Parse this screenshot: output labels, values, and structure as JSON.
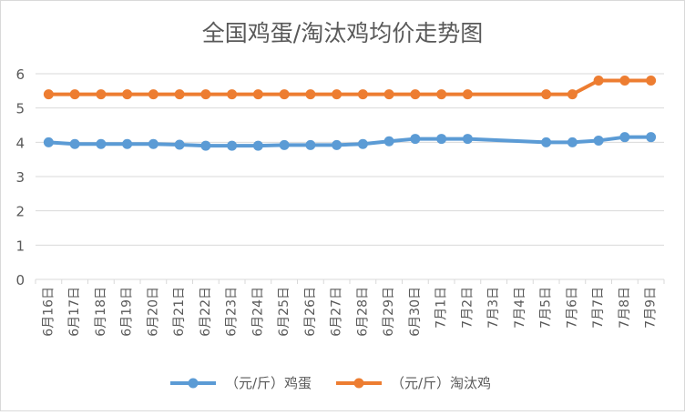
{
  "chart_data": {
    "type": "line",
    "title": "全国鸡蛋/淘汰鸡均价走势图",
    "ylim": [
      0,
      6
    ],
    "yticks": [
      0,
      1,
      2,
      3,
      4,
      5,
      6
    ],
    "grid": true,
    "legend_position": "bottom",
    "categories": [
      "6月16日",
      "6月17日",
      "6月18日",
      "6月19日",
      "6月20日",
      "6月21日",
      "6月22日",
      "6月23日",
      "6月24日",
      "6月25日",
      "6月26日",
      "6月27日",
      "6月28日",
      "6月29日",
      "6月30日",
      "7月1日",
      "7月2日",
      "7月3日",
      "7月4日",
      "7月5日",
      "7月6日",
      "7月7日",
      "7月8日",
      "7月9日"
    ],
    "series": [
      {
        "name": "（元/斤）鸡蛋",
        "color": "#5b9bd5",
        "values": [
          4.0,
          3.95,
          3.95,
          3.95,
          3.95,
          3.93,
          3.9,
          3.9,
          3.9,
          3.92,
          3.92,
          3.92,
          3.95,
          4.03,
          4.1,
          4.1,
          4.1,
          null,
          null,
          4.0,
          4.0,
          4.05,
          4.15,
          4.15
        ]
      },
      {
        "name": "（元/斤）淘汰鸡",
        "color": "#ed7d31",
        "values": [
          5.4,
          5.4,
          5.4,
          5.4,
          5.4,
          5.4,
          5.4,
          5.4,
          5.4,
          5.4,
          5.4,
          5.4,
          5.4,
          5.4,
          5.4,
          5.4,
          5.4,
          null,
          null,
          5.4,
          5.4,
          5.8,
          5.8,
          5.8
        ]
      }
    ]
  }
}
